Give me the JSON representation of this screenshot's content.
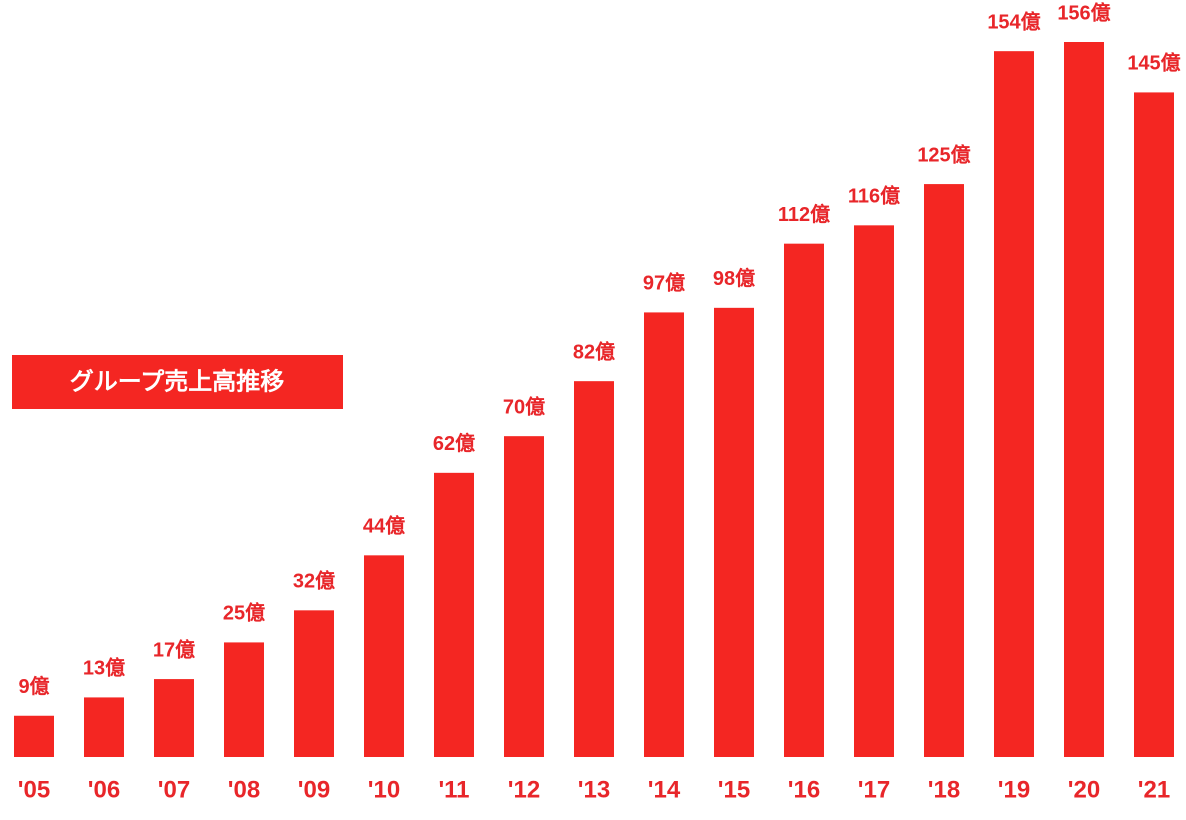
{
  "chart_data": {
    "type": "bar",
    "title": "グループ売上高推移",
    "categories": [
      "'05",
      "'06",
      "'07",
      "'08",
      "'09",
      "'10",
      "'11",
      "'12",
      "'13",
      "'14",
      "'15",
      "'16",
      "'17",
      "'18",
      "'19",
      "'20",
      "'21"
    ],
    "values": [
      9,
      13,
      17,
      25,
      32,
      44,
      62,
      70,
      82,
      97,
      98,
      112,
      116,
      125,
      154,
      156,
      145
    ],
    "value_labels": [
      "9億",
      "13億",
      "17億",
      "25億",
      "32億",
      "44億",
      "62億",
      "70億",
      "82億",
      "97億",
      "98億",
      "112億",
      "116億",
      "125億",
      "154億",
      "156億",
      "145億"
    ],
    "color": "#f42622"
  }
}
